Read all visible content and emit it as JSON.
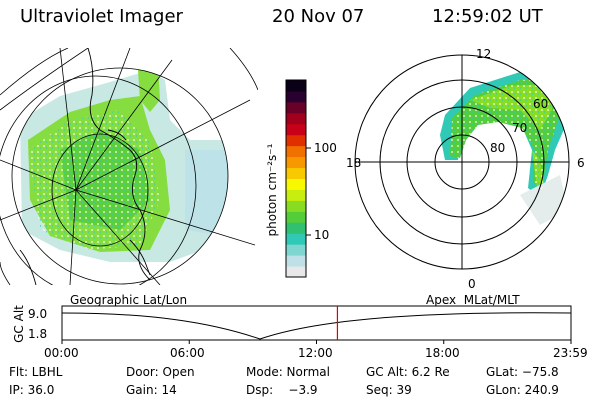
{
  "header": {
    "instrument": "Ultraviolet Imager",
    "date": "20 Nov 07",
    "time": "12:59:02 UT"
  },
  "colorbar": {
    "label": "photon cm⁻²s⁻¹",
    "ticks": [
      "100",
      "10"
    ],
    "colors": [
      "#e8e8e8",
      "#bfe0e6",
      "#7fd6d0",
      "#2fc9b6",
      "#30c070",
      "#55cc3a",
      "#88dd22",
      "#c8ee10",
      "#f8f800",
      "#f8c800",
      "#f89800",
      "#f07000",
      "#e03000",
      "#c80018",
      "#a0001c",
      "#680028",
      "#2a0030",
      "#0a0018"
    ]
  },
  "left_map": {
    "caption": "Geographic Lat/Lon"
  },
  "right_map": {
    "caption": "Apex  MLat/MLT",
    "mlt_labels": {
      "top": "12",
      "left": "18",
      "right": "6",
      "bottom": "0"
    },
    "lat_labels": [
      "60",
      "70",
      "80"
    ]
  },
  "altitude_plot": {
    "axis_label": "GC Alt",
    "y_ticks": [
      "9.0",
      "1.8"
    ],
    "x_ticks": [
      "00:00",
      "06:00",
      "12:00",
      "18:00",
      "23:59"
    ],
    "current_time_fraction": 0.5411,
    "marker_color": "#e00000"
  },
  "info": {
    "flt": "Flt: LBHL",
    "door": "Door: Open",
    "mode": "Mode: Normal",
    "gc_alt": "GC Alt: 6.2 Re",
    "glat": "GLat: −75.8",
    "ip": "IP: 36.0",
    "gain": "Gain: 14",
    "dsp": "Dsp:    −3.9",
    "seq": "Seq: 39",
    "glon": "GLon: 240.9"
  }
}
